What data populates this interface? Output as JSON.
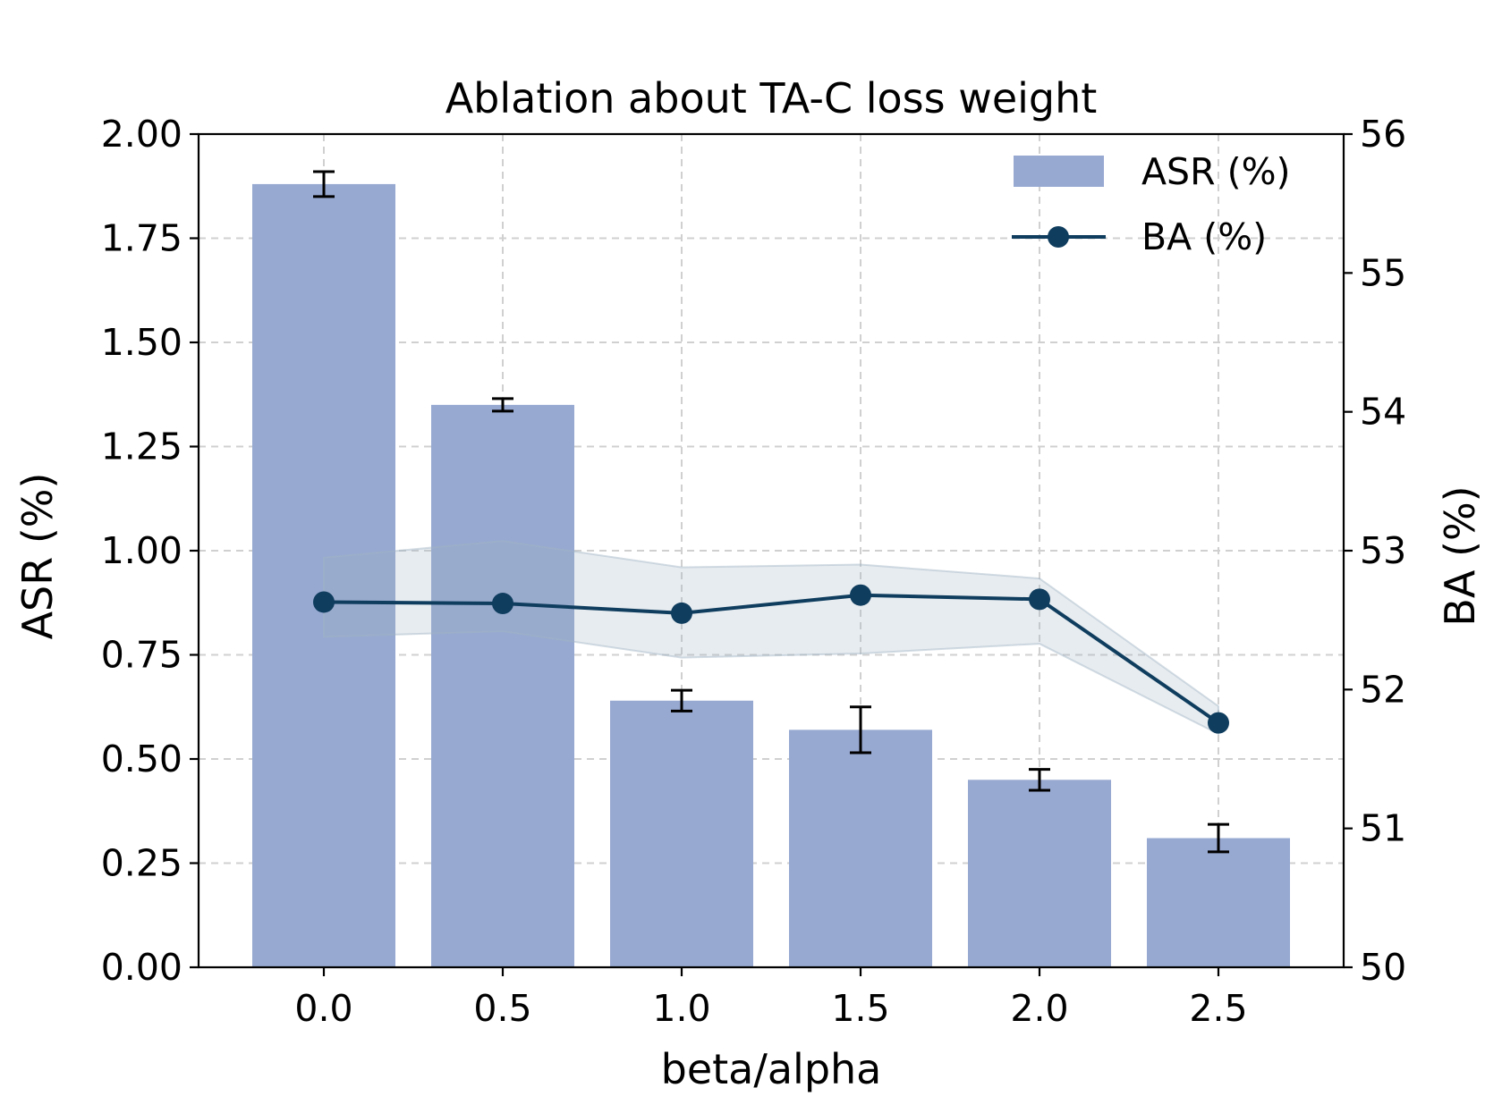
{
  "chart_data": {
    "type": "bar",
    "title": "Ablation about TA-C loss weight",
    "xlabel": "beta/alpha",
    "ylabel": "ASR (%)",
    "ylabel_right": "BA (%)",
    "categories": [
      "0.0",
      "0.5",
      "1.0",
      "1.5",
      "2.0",
      "2.5"
    ],
    "ylim": [
      0,
      2.0
    ],
    "yticks": [
      "0.00",
      "0.25",
      "0.50",
      "0.75",
      "1.00",
      "1.25",
      "1.50",
      "1.75",
      "2.00"
    ],
    "ylim_right": [
      50,
      56
    ],
    "yticks_right": [
      "50",
      "51",
      "52",
      "53",
      "54",
      "55",
      "56"
    ],
    "grid": true,
    "legend_position": "top-right",
    "series": [
      {
        "name": "ASR (%)",
        "type": "bar",
        "axis": "left",
        "color": "#97a9d1",
        "values": [
          1.88,
          1.35,
          0.64,
          0.57,
          0.45,
          0.31
        ],
        "errors": [
          0.03,
          0.015,
          0.025,
          0.055,
          0.025,
          0.033
        ]
      },
      {
        "name": "BA (%)",
        "type": "line",
        "axis": "right",
        "color": "#0f3d5e",
        "values": [
          52.63,
          52.62,
          52.55,
          52.68,
          52.65,
          51.76
        ],
        "band_low": [
          52.38,
          52.42,
          52.23,
          52.26,
          52.33,
          51.68
        ],
        "band_high": [
          52.95,
          53.07,
          52.88,
          52.9,
          52.8,
          51.88
        ]
      }
    ]
  }
}
